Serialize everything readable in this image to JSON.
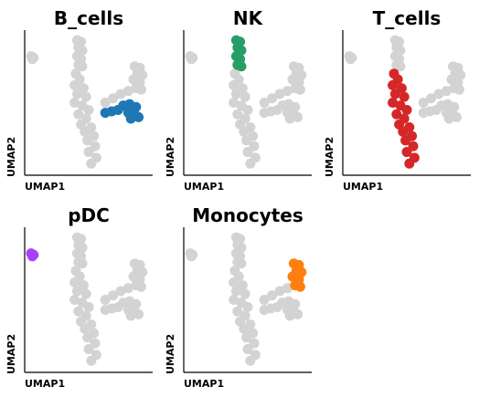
{
  "chart_data": [
    {
      "type": "scatter",
      "title": "B_cells",
      "xlabel": "UMAP1",
      "ylabel": "UMAP2",
      "xlim": [
        0,
        10
      ],
      "ylim": [
        0,
        10
      ],
      "series": [
        {
          "color": "#d3d3d3",
          "x": [
            0.5,
            0.6,
            0.7
          ],
          "y": [
            8.2,
            8.0,
            8.1
          ]
        },
        {
          "color": "#d3d3d3",
          "x": [
            4.1,
            4.4,
            4.2,
            4.5,
            4.1,
            4.4,
            4.2,
            4.5
          ],
          "y": [
            9.3,
            9.2,
            8.8,
            8.6,
            8.2,
            8.0,
            7.6,
            7.5
          ]
        },
        {
          "color": "#d3d3d3",
          "x": [
            4.0,
            4.3,
            3.9,
            4.6,
            4.1,
            4.8,
            3.9,
            4.5,
            5.0,
            4.2,
            4.8,
            4.4,
            5.2,
            4.7,
            5.4,
            4.9,
            5.5,
            5.0,
            5.6,
            5.2
          ],
          "y": [
            7.0,
            6.6,
            6.2,
            6.0,
            5.6,
            5.4,
            5.0,
            4.8,
            4.5,
            4.2,
            3.9,
            3.5,
            3.3,
            3.0,
            2.7,
            2.4,
            2.0,
            1.6,
            1.2,
            0.8
          ]
        },
        {
          "color": "#d3d3d3",
          "x": [
            8.6,
            9.0,
            8.8,
            9.2,
            8.5,
            9.0,
            8.7,
            9.1
          ],
          "y": [
            7.5,
            7.4,
            7.0,
            6.9,
            6.6,
            6.4,
            6.0,
            5.9
          ]
        },
        {
          "color": "#d3d3d3",
          "x": [
            6.3,
            6.9,
            7.5,
            8.1
          ],
          "y": [
            5.0,
            5.3,
            5.6,
            5.8
          ]
        },
        {
          "color": "#1f77b4",
          "x": [
            6.3,
            6.8,
            7.3,
            7.7,
            8.2,
            8.7,
            8.1,
            8.6,
            8.9,
            8.3
          ],
          "y": [
            4.3,
            4.4,
            4.5,
            4.8,
            4.9,
            4.7,
            4.3,
            4.2,
            4.0,
            3.9
          ]
        }
      ]
    },
    {
      "type": "scatter",
      "title": "NK",
      "xlabel": "UMAP1",
      "ylabel": "UMAP2",
      "xlim": [
        0,
        10
      ],
      "ylim": [
        0,
        10
      ],
      "series": [
        {
          "color": "#d3d3d3",
          "x": [
            0.5,
            0.6,
            0.7
          ],
          "y": [
            8.2,
            8.0,
            8.1
          ]
        },
        {
          "color": "#d3d3d3",
          "x": [
            4.0,
            4.3,
            3.9,
            4.6,
            4.1,
            4.8,
            3.9,
            4.5,
            5.0,
            4.2,
            4.8,
            4.4,
            5.2,
            4.7,
            5.4,
            4.9,
            5.5,
            5.0,
            5.6,
            5.2
          ],
          "y": [
            7.0,
            6.6,
            6.2,
            6.0,
            5.6,
            5.4,
            5.0,
            4.8,
            4.5,
            4.2,
            3.9,
            3.5,
            3.3,
            3.0,
            2.7,
            2.4,
            2.0,
            1.6,
            1.2,
            0.8
          ]
        },
        {
          "color": "#d3d3d3",
          "x": [
            8.6,
            9.0,
            8.8,
            9.2,
            8.5,
            9.0,
            8.7,
            9.1
          ],
          "y": [
            7.5,
            7.4,
            7.0,
            6.9,
            6.6,
            6.4,
            6.0,
            5.9
          ]
        },
        {
          "color": "#d3d3d3",
          "x": [
            6.3,
            6.9,
            7.5,
            8.1
          ],
          "y": [
            5.0,
            5.3,
            5.6,
            5.8
          ]
        },
        {
          "color": "#d3d3d3",
          "x": [
            6.3,
            6.8,
            7.3,
            7.7,
            8.2,
            8.7,
            8.1,
            8.6,
            8.9,
            8.3
          ],
          "y": [
            4.3,
            4.4,
            4.5,
            4.8,
            4.9,
            4.7,
            4.3,
            4.2,
            4.0,
            3.9
          ]
        },
        {
          "color": "#279e68",
          "x": [
            4.1,
            4.4,
            4.2,
            4.5,
            4.1,
            4.4,
            4.2,
            4.5
          ],
          "y": [
            9.3,
            9.2,
            8.8,
            8.6,
            8.2,
            8.0,
            7.6,
            7.5
          ]
        }
      ]
    },
    {
      "type": "scatter",
      "title": "T_cells",
      "xlabel": "UMAP1",
      "ylabel": "UMAP2",
      "xlim": [
        0,
        10
      ],
      "ylim": [
        0,
        10
      ],
      "series": [
        {
          "color": "#d3d3d3",
          "x": [
            0.5,
            0.6,
            0.7
          ],
          "y": [
            8.2,
            8.0,
            8.1
          ]
        },
        {
          "color": "#d3d3d3",
          "x": [
            4.1,
            4.4,
            4.2,
            4.5,
            4.1,
            4.4,
            4.2,
            4.5
          ],
          "y": [
            9.3,
            9.2,
            8.8,
            8.6,
            8.2,
            8.0,
            7.6,
            7.5
          ]
        },
        {
          "color": "#d3d3d3",
          "x": [
            8.6,
            9.0,
            8.8,
            9.2,
            8.5,
            9.0,
            8.7,
            9.1
          ],
          "y": [
            7.5,
            7.4,
            7.0,
            6.9,
            6.6,
            6.4,
            6.0,
            5.9
          ]
        },
        {
          "color": "#d3d3d3",
          "x": [
            6.3,
            6.9,
            7.5,
            8.1
          ],
          "y": [
            5.0,
            5.3,
            5.6,
            5.8
          ]
        },
        {
          "color": "#d3d3d3",
          "x": [
            6.3,
            6.8,
            7.3,
            7.7,
            8.2,
            8.7,
            8.1,
            8.6,
            8.9,
            8.3
          ],
          "y": [
            4.3,
            4.4,
            4.5,
            4.8,
            4.9,
            4.7,
            4.3,
            4.2,
            4.0,
            3.9
          ]
        },
        {
          "color": "#d62728",
          "x": [
            4.0,
            4.3,
            3.9,
            4.6,
            4.1,
            4.8,
            3.9,
            4.5,
            5.0,
            4.2,
            4.8,
            4.4,
            5.2,
            4.7,
            5.4,
            4.9,
            5.5,
            5.0,
            5.6,
            5.2
          ],
          "y": [
            7.0,
            6.6,
            6.2,
            6.0,
            5.6,
            5.4,
            5.0,
            4.8,
            4.5,
            4.2,
            3.9,
            3.5,
            3.3,
            3.0,
            2.7,
            2.4,
            2.0,
            1.6,
            1.2,
            0.8
          ]
        }
      ]
    },
    {
      "type": "scatter",
      "title": "pDC",
      "xlabel": "UMAP1",
      "ylabel": "UMAP2",
      "xlim": [
        0,
        10
      ],
      "ylim": [
        0,
        10
      ],
      "series": [
        {
          "color": "#d3d3d3",
          "x": [
            4.1,
            4.4,
            4.2,
            4.5,
            4.1,
            4.4,
            4.2,
            4.5
          ],
          "y": [
            9.3,
            9.2,
            8.8,
            8.6,
            8.2,
            8.0,
            7.6,
            7.5
          ]
        },
        {
          "color": "#d3d3d3",
          "x": [
            4.0,
            4.3,
            3.9,
            4.6,
            4.1,
            4.8,
            3.9,
            4.5,
            5.0,
            4.2,
            4.8,
            4.4,
            5.2,
            4.7,
            5.4,
            4.9,
            5.5,
            5.0,
            5.6,
            5.2
          ],
          "y": [
            7.0,
            6.6,
            6.2,
            6.0,
            5.6,
            5.4,
            5.0,
            4.8,
            4.5,
            4.2,
            3.9,
            3.5,
            3.3,
            3.0,
            2.7,
            2.4,
            2.0,
            1.6,
            1.2,
            0.8
          ]
        },
        {
          "color": "#d3d3d3",
          "x": [
            8.6,
            9.0,
            8.8,
            9.2,
            8.5,
            9.0,
            8.7,
            9.1
          ],
          "y": [
            7.5,
            7.4,
            7.0,
            6.9,
            6.6,
            6.4,
            6.0,
            5.9
          ]
        },
        {
          "color": "#d3d3d3",
          "x": [
            6.3,
            6.9,
            7.5,
            8.1
          ],
          "y": [
            5.0,
            5.3,
            5.6,
            5.8
          ]
        },
        {
          "color": "#d3d3d3",
          "x": [
            6.3,
            6.8,
            7.3,
            7.7,
            8.2,
            8.7,
            8.1,
            8.6,
            8.9,
            8.3
          ],
          "y": [
            4.3,
            4.4,
            4.5,
            4.8,
            4.9,
            4.7,
            4.3,
            4.2,
            4.0,
            3.9
          ]
        },
        {
          "color": "#aa40fc",
          "x": [
            0.5,
            0.6,
            0.7
          ],
          "y": [
            8.2,
            8.0,
            8.1
          ]
        }
      ]
    },
    {
      "type": "scatter",
      "title": "Monocytes",
      "xlabel": "UMAP1",
      "ylabel": "UMAP2",
      "xlim": [
        0,
        10
      ],
      "ylim": [
        0,
        10
      ],
      "series": [
        {
          "color": "#d3d3d3",
          "x": [
            0.5,
            0.6,
            0.7
          ],
          "y": [
            8.2,
            8.0,
            8.1
          ]
        },
        {
          "color": "#d3d3d3",
          "x": [
            4.1,
            4.4,
            4.2,
            4.5,
            4.1,
            4.4,
            4.2,
            4.5
          ],
          "y": [
            9.3,
            9.2,
            8.8,
            8.6,
            8.2,
            8.0,
            7.6,
            7.5
          ]
        },
        {
          "color": "#d3d3d3",
          "x": [
            4.0,
            4.3,
            3.9,
            4.6,
            4.1,
            4.8,
            3.9,
            4.5,
            5.0,
            4.2,
            4.8,
            4.4,
            5.2,
            4.7,
            5.4,
            4.9,
            5.5,
            5.0,
            5.6,
            5.2
          ],
          "y": [
            7.0,
            6.6,
            6.2,
            6.0,
            5.6,
            5.4,
            5.0,
            4.8,
            4.5,
            4.2,
            3.9,
            3.5,
            3.3,
            3.0,
            2.7,
            2.4,
            2.0,
            1.6,
            1.2,
            0.8
          ]
        },
        {
          "color": "#d3d3d3",
          "x": [
            6.3,
            6.9,
            7.5,
            8.1
          ],
          "y": [
            5.0,
            5.3,
            5.6,
            5.8
          ]
        },
        {
          "color": "#d3d3d3",
          "x": [
            6.3,
            6.8,
            7.3,
            7.7,
            8.2,
            8.7,
            8.1,
            8.6,
            8.9,
            8.3
          ],
          "y": [
            4.3,
            4.4,
            4.5,
            4.8,
            4.9,
            4.7,
            4.3,
            4.2,
            4.0,
            3.9
          ]
        },
        {
          "color": "#ff7f0e",
          "x": [
            8.6,
            9.0,
            8.8,
            9.2,
            8.5,
            9.0,
            8.7,
            9.1
          ],
          "y": [
            7.5,
            7.4,
            7.0,
            6.9,
            6.6,
            6.4,
            6.0,
            5.9
          ]
        }
      ]
    }
  ]
}
